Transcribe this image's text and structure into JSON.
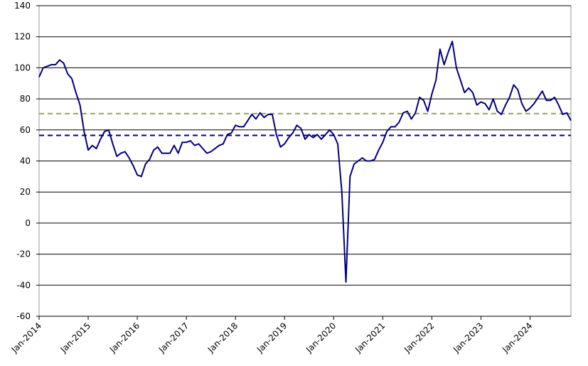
{
  "chart_data": {
    "type": "line",
    "categories": [
      "Jan-2014",
      null,
      null,
      null,
      null,
      null,
      null,
      null,
      null,
      null,
      null,
      null,
      "Jan-2015",
      null,
      null,
      null,
      null,
      null,
      null,
      null,
      null,
      null,
      null,
      null,
      "Jan-2016",
      null,
      null,
      null,
      null,
      null,
      null,
      null,
      null,
      null,
      null,
      null,
      "Jan-2017",
      null,
      null,
      null,
      null,
      null,
      null,
      null,
      null,
      null,
      null,
      null,
      "Jan-2018",
      null,
      null,
      null,
      null,
      null,
      null,
      null,
      null,
      null,
      null,
      null,
      "Jan-2019",
      null,
      null,
      null,
      null,
      null,
      null,
      null,
      null,
      null,
      null,
      null,
      "Jan-2020",
      null,
      null,
      null,
      null,
      null,
      null,
      null,
      null,
      null,
      null,
      null,
      "Jan-2021",
      null,
      null,
      null,
      null,
      null,
      null,
      null,
      null,
      null,
      null,
      null,
      "Jan-2022",
      null,
      null,
      null,
      null,
      null,
      null,
      null,
      null,
      null,
      null,
      null,
      "Jan-2023",
      null,
      null,
      null,
      null,
      null,
      null,
      null,
      null,
      null,
      null,
      null,
      "Jan-2024",
      null,
      null,
      null,
      null,
      null,
      null,
      null,
      null,
      null,
      null
    ],
    "values": [
      94,
      100,
      101,
      102,
      102,
      105,
      103,
      96,
      93,
      84,
      76,
      59,
      47,
      50,
      48,
      54,
      59,
      60,
      51,
      43,
      45,
      46,
      42,
      37,
      31,
      30,
      38,
      41,
      47,
      49,
      45,
      45,
      45,
      50,
      45,
      52,
      52,
      53,
      50,
      51,
      48,
      45,
      46,
      48,
      50,
      51,
      57,
      58,
      63,
      62,
      62,
      66,
      70,
      67,
      71,
      68,
      70,
      70,
      57,
      49,
      51,
      55,
      58,
      63,
      61,
      54,
      57,
      55,
      57,
      54,
      57,
      60,
      57,
      51,
      20,
      -38,
      30,
      38,
      40,
      42,
      40,
      40,
      41,
      47,
      52,
      59,
      62,
      62,
      65,
      71,
      72,
      67,
      71,
      81,
      79,
      72,
      83,
      92,
      112,
      102,
      110,
      117,
      100,
      92,
      84,
      87,
      84,
      76,
      78,
      77,
      73,
      80,
      72,
      70,
      76,
      81,
      89,
      86,
      77,
      72,
      74,
      77,
      81,
      85,
      79,
      79,
      81,
      76,
      70,
      71,
      66
    ],
    "color": "#000080",
    "ylim": [
      -60,
      140
    ],
    "yticks": [
      -60,
      -40,
      -20,
      0,
      20,
      40,
      60,
      80,
      100,
      120,
      140
    ],
    "grid": true,
    "reference_lines": [
      {
        "value": 70.5,
        "color": "#9aa55a"
      },
      {
        "value": 56.5,
        "color": "#000080"
      }
    ]
  }
}
